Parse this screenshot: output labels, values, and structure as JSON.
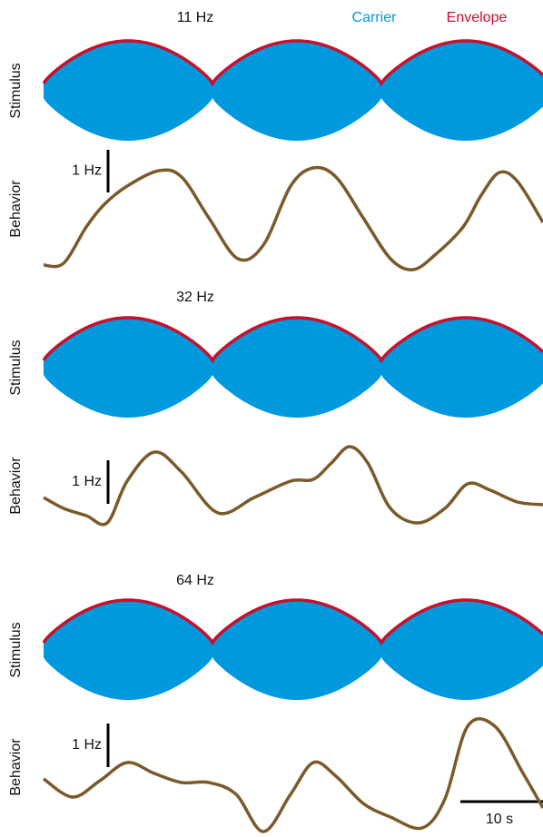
{
  "legend": {
    "carrier": "Carrier",
    "envelope": "Envelope"
  },
  "panels": [
    {
      "title": "11 Hz",
      "stimulus_label": "Stimulus",
      "behavior_label": "Behavior",
      "scale_label": "1 Hz"
    },
    {
      "title": "32 Hz",
      "stimulus_label": "Stimulus",
      "behavior_label": "Behavior",
      "scale_label": "1 Hz"
    },
    {
      "title": "64 Hz",
      "stimulus_label": "Stimulus",
      "behavior_label": "Behavior",
      "scale_label": "1 Hz"
    }
  ],
  "time_scale_label": "10 s"
}
